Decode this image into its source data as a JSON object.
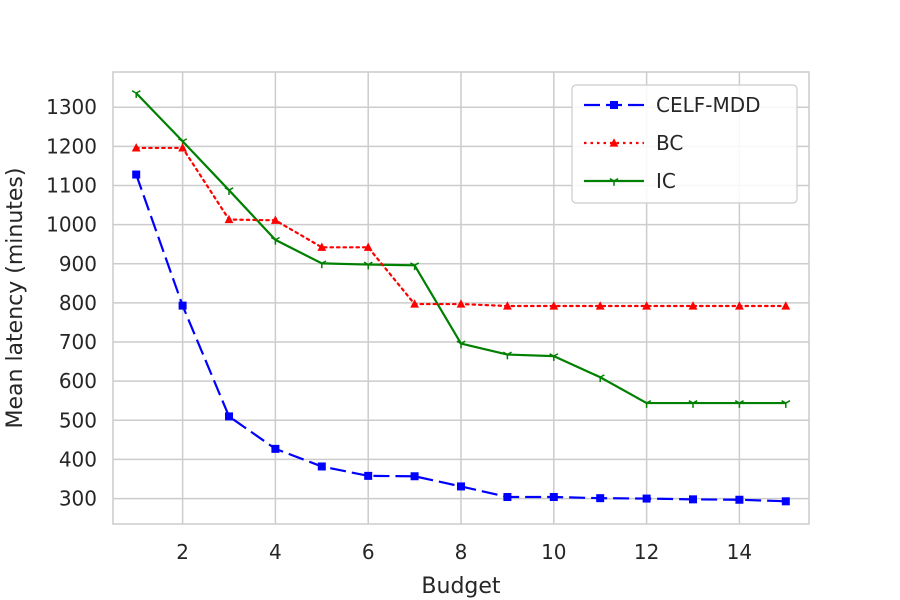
{
  "chart_data": {
    "type": "line",
    "title": "",
    "xlabel": "Budget",
    "ylabel": "Mean latency (minutes)",
    "xlim": [
      0.5,
      15.5
    ],
    "ylim": [
      235,
      1390
    ],
    "xticks": [
      2,
      4,
      6,
      8,
      10,
      12,
      14
    ],
    "yticks": [
      300,
      400,
      500,
      600,
      700,
      800,
      900,
      1000,
      1100,
      1200,
      1300
    ],
    "grid": true,
    "legend_position": "top-right",
    "x": [
      1,
      2,
      3,
      4,
      5,
      6,
      7,
      8,
      9,
      10,
      11,
      12,
      13,
      14,
      15
    ],
    "series": [
      {
        "name": "CELF-MDD",
        "color": "#0000ff",
        "line_style": "dashed",
        "marker": "square",
        "values": [
          1128,
          793,
          510,
          427,
          382,
          358,
          357,
          331,
          304,
          304,
          301,
          300,
          298,
          297,
          293
        ]
      },
      {
        "name": "BC",
        "color": "#ff0000",
        "line_style": "dotted",
        "marker": "triangle",
        "values": [
          1196,
          1196,
          1013,
          1011,
          942,
          942,
          797,
          797,
          792,
          792,
          792,
          792,
          792,
          792,
          792
        ]
      },
      {
        "name": "IC",
        "color": "#008000",
        "line_style": "solid",
        "marker": "tri-down",
        "values": [
          1336,
          1213,
          1088,
          961,
          901,
          898,
          896,
          696,
          668,
          664,
          610,
          544,
          544,
          544,
          544
        ]
      }
    ]
  }
}
